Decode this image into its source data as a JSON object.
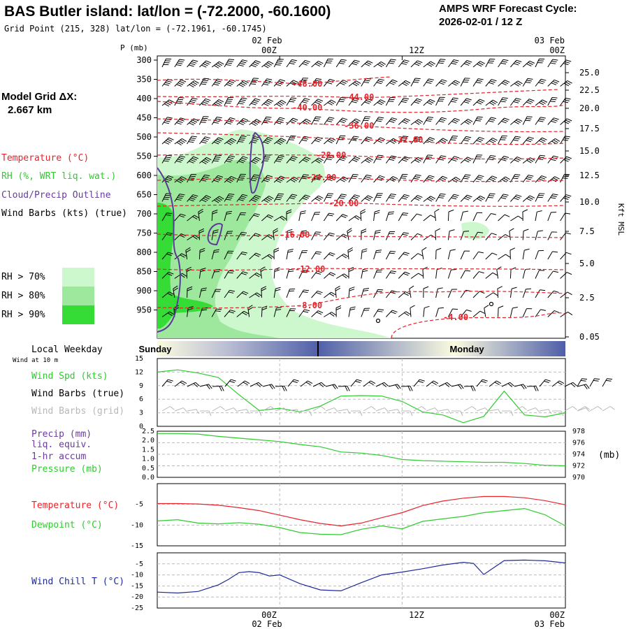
{
  "header": {
    "title": "BAS Butler island:  lat/lon = (-72.2000, -60.1600)",
    "subtitle": "Grid Point (215, 328) lat/lon = (-72.1961, -60.1745)",
    "cycle_line1": "AMPS WRF Forecast Cycle:",
    "cycle_line2": "2026-02-01 / 12  Z",
    "model_grid_label": "Model Grid ΔX:",
    "model_grid_value": "2.667 km"
  },
  "time_axis": {
    "top_dates": [
      "02 Feb",
      "",
      "03 Feb"
    ],
    "labels": [
      "00Z",
      "12Z",
      "00Z"
    ],
    "bottom_dates": [
      "02 Feb",
      "",
      "03 Feb"
    ]
  },
  "legend_upper": {
    "temperature": "Temperature (°C)",
    "rh": "RH (%, WRT liq. wat.)",
    "cloud": "Cloud/Precip Outline",
    "wind": "Wind Barbs (kts) (true)",
    "rh_levels": [
      {
        "label": "RH > 70%",
        "color": "#cdf7cd"
      },
      {
        "label": "RH > 80%",
        "color": "#9ee89e"
      },
      {
        "label": "RH > 90%",
        "color": "#35dc35"
      }
    ]
  },
  "weekday": {
    "title": "Local Weekday",
    "sub": "Wind at 10 m",
    "day1": "Sunday",
    "day2": "Monday"
  },
  "legend_wind": {
    "speed": "Wind Spd (kts)",
    "barbs_true": "Wind Barbs (true)",
    "barbs_grid": "Wind Barbs (grid)"
  },
  "legend_precip": {
    "precip1": "Precip (mm)",
    "precip2": "liq. equiv.",
    "precip3": "1-hr accum",
    "pressure": "Pressure (mb)",
    "right_unit": "(mb)"
  },
  "legend_temp": {
    "temperature": "Temperature (°C)",
    "dewpoint": "Dewpoint (°C)"
  },
  "legend_chill": {
    "label": "Wind Chill T (°C)"
  },
  "colors": {
    "temperature": "#e8232a",
    "rh": "#35c835",
    "cloud": "#5a3a9a",
    "dewpoint": "#2ecc2e",
    "windchill": "#1c2a9a",
    "grid_barbs": "#b8b8b8"
  },
  "chart_data": [
    {
      "type": "heatmap",
      "name": "time-height cross section",
      "y_axis": {
        "label": "P (mb)",
        "ticks": [
          300,
          350,
          400,
          450,
          500,
          550,
          600,
          650,
          700,
          750,
          800,
          850,
          900,
          950
        ]
      },
      "right_axis": {
        "label": "Kft MSL",
        "ticks": [
          "25.0",
          "22.5",
          "20.0",
          "17.5",
          "15.0",
          "12.5",
          "10.0",
          "7.5",
          "5.0",
          "2.5",
          "0.05"
        ]
      },
      "temperature_contour_labels": [
        "-48.00",
        "-44.00",
        "-40.00",
        "-36.00",
        "-32.00",
        "-28.00",
        "-24.00",
        "-20.00",
        "-16.00",
        "-12.00",
        "-8.00",
        "-4.00"
      ]
    },
    {
      "type": "line",
      "name": "10 m wind speed",
      "ylabel": "Wind Spd (kts)",
      "ylim": [
        0,
        15
      ],
      "yticks": [
        0,
        3,
        6,
        9,
        12,
        15
      ],
      "x_hours": [
        0,
        2,
        4,
        6,
        8,
        10,
        12,
        14,
        16,
        18,
        20,
        22,
        24,
        26,
        28,
        30,
        32,
        34,
        36,
        38,
        40
      ],
      "values": [
        12,
        12.5,
        11.8,
        10.8,
        7,
        3.5,
        4,
        3.2,
        4.5,
        6.7,
        6.8,
        6.7,
        5.5,
        3.2,
        2.5,
        0.8,
        2.2,
        7.8,
        2.5,
        2.1,
        3
      ]
    },
    {
      "type": "line",
      "name": "pressure",
      "ylabel": "Pressure (mb)",
      "ylim": [
        970,
        978
      ],
      "yticks": [
        970,
        972,
        974,
        976,
        978
      ],
      "precip_ticks": [
        "0.0",
        "0.5",
        "1.0",
        "1.5",
        "2.0",
        "2.5"
      ],
      "x_hours": [
        0,
        2,
        4,
        6,
        8,
        10,
        12,
        14,
        16,
        18,
        20,
        22,
        24,
        26,
        28,
        30,
        32,
        34,
        36,
        38,
        40
      ],
      "values": [
        977.6,
        977.6,
        977.5,
        977.1,
        976.8,
        976.5,
        976.2,
        975.7,
        975.3,
        974.4,
        974.2,
        973.8,
        973.1,
        972.9,
        972.8,
        972.7,
        972.6,
        972.6,
        972.4,
        972.1,
        972.0
      ]
    },
    {
      "type": "line",
      "name": "temperature and dewpoint",
      "ylim": [
        -15,
        0
      ],
      "yticks": [
        -15,
        -10,
        -5
      ],
      "x_hours": [
        0,
        2,
        4,
        6,
        8,
        10,
        12,
        14,
        16,
        18,
        20,
        22,
        24,
        26,
        28,
        30,
        32,
        34,
        36,
        38,
        40
      ],
      "series": [
        {
          "name": "Temperature (°C)",
          "values": [
            -4.8,
            -4.8,
            -4.9,
            -5.2,
            -5.8,
            -6.5,
            -7.6,
            -8.7,
            -9.6,
            -10.2,
            -9.5,
            -8.2,
            -7,
            -5.3,
            -4.2,
            -3.5,
            -3.1,
            -3.1,
            -3.4,
            -4.1,
            -5.1
          ]
        },
        {
          "name": "Dewpoint (°C)",
          "values": [
            -9,
            -8.7,
            -9.5,
            -9.7,
            -9.4,
            -9.8,
            -10.6,
            -11.8,
            -12.2,
            -12.3,
            -11,
            -10.2,
            -10.9,
            -9.1,
            -8.5,
            -7.9,
            -7,
            -6.5,
            -6,
            -7.5,
            -10.2
          ]
        }
      ]
    },
    {
      "type": "line",
      "name": "wind chill",
      "ylabel": "Wind Chill T (°C)",
      "ylim": [
        -25,
        0
      ],
      "yticks": [
        -25,
        -20,
        -15,
        -10,
        -5
      ],
      "x_hours": [
        0,
        2,
        4,
        6,
        7,
        8,
        9,
        10,
        11,
        12,
        14,
        16,
        18,
        20,
        22,
        24,
        26,
        28,
        30,
        31,
        32,
        34,
        36,
        38,
        40
      ],
      "values": [
        -17.8,
        -18.2,
        -17.5,
        -14.5,
        -12,
        -9,
        -8.5,
        -9,
        -10.5,
        -10,
        -14,
        -16.8,
        -17.2,
        -13.5,
        -10,
        -8.7,
        -7.2,
        -5.5,
        -4.3,
        -4.8,
        -9.8,
        -3.5,
        -3.3,
        -3.6,
        -4.6
      ]
    }
  ]
}
